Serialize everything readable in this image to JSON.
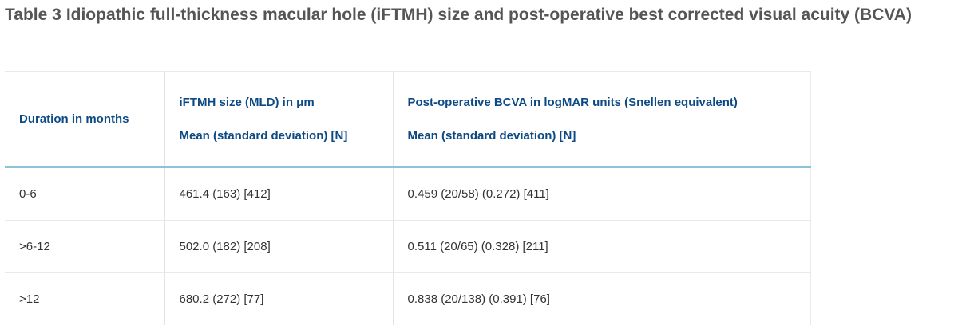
{
  "caption": {
    "label": "Table 3",
    "text": "Idiopathic full-thickness macular hole (iFTMH) size and post-operative best corrected visual acuity (BCVA)"
  },
  "table": {
    "headers": [
      {
        "line1": "Duration in months",
        "line2": ""
      },
      {
        "line1": "iFTMH size (MLD) in μm",
        "line2": "Mean (standard deviation) [N]"
      },
      {
        "line1": "Post-operative BCVA in logMAR units (Snellen equivalent)",
        "line2": "Mean (standard deviation) [N]"
      }
    ],
    "rows": [
      [
        "0-6",
        "461.4 (163) [412]",
        "0.459 (20/58) (0.272) [411]"
      ],
      [
        ">6-12",
        "502.0 (182) [208]",
        "0.511 (20/65) (0.328) [211]"
      ],
      [
        ">12",
        "680.2 (272) [77]",
        "0.838 (20/138) (0.391) [76]"
      ]
    ]
  }
}
